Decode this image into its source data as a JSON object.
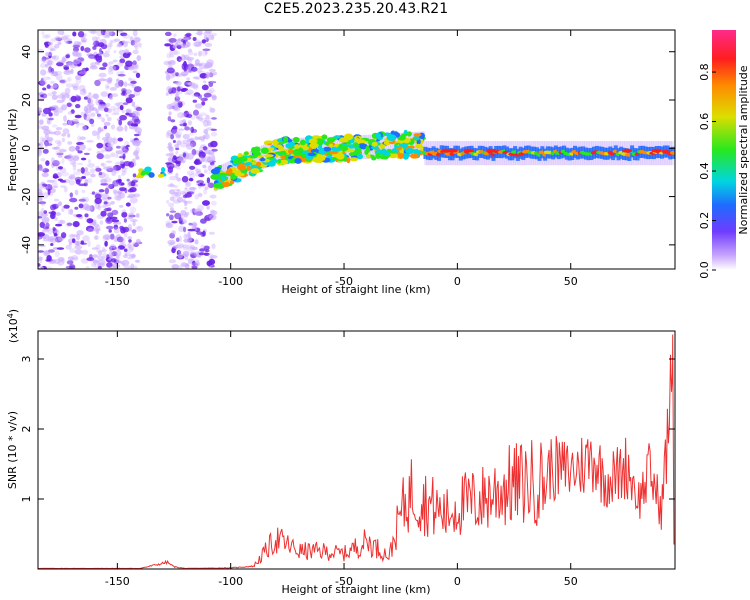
{
  "title": "C2E5.2023.235.20.43.R21",
  "colors": {
    "snr_line": "#ee3030",
    "waterfall_scatter": "#7a3cf0",
    "colorscale": [
      "#6f3cff",
      "#1e6bff",
      "#00d6e0",
      "#27e81f",
      "#dddd00",
      "#ff8a00",
      "#ff1e1e",
      "#ff2a8c"
    ]
  },
  "chart_data": [
    {
      "type": "heatmap",
      "name": "spectrogram",
      "xlabel": "Height of straight line (km)",
      "ylabel": "Frequency (Hz)",
      "xlim": [
        -185,
        96
      ],
      "ylim": [
        -50,
        49
      ],
      "xticks": [
        -150,
        -100,
        -50,
        0,
        50
      ],
      "yticks": [
        -40,
        -20,
        0,
        20,
        40
      ],
      "colorbar": {
        "label": "Normalized spectral amplitude",
        "range": [
          0,
          0.97
        ],
        "ticks": [
          0.0,
          0.2,
          0.4,
          0.6,
          0.8
        ]
      },
      "features": [
        {
          "x_range": [
            -185,
            -140
          ],
          "freq_range": [
            -50,
            49
          ],
          "amplitude": 0.1
        },
        {
          "x_range": [
            -128,
            -107
          ],
          "freq_range": [
            -50,
            49
          ],
          "amplitude": 0.1
        },
        {
          "x_range": [
            -140,
            -129
          ],
          "freq_center": -10,
          "amplitude": 0.45
        },
        {
          "x_range": [
            -107,
            -15
          ],
          "freq_trend": [
            [
              -107,
              -13
            ],
            [
              -80,
              -1
            ],
            [
              -50,
              0
            ],
            [
              -15,
              2
            ]
          ],
          "amplitude": 0.35
        },
        {
          "x_range": [
            -15,
            96
          ],
          "freq_center": -2,
          "amplitude": 0.5,
          "peak_amplitude": 0.9
        }
      ]
    },
    {
      "type": "line",
      "name": "snr",
      "xlabel": "Height of straight line (km)",
      "ylabel": "SNR (10 * v/v)",
      "y_multiplier_label": "(x10^4)",
      "xlim": [
        -185,
        96
      ],
      "ylim": [
        0,
        3.4
      ],
      "xticks": [
        -150,
        -100,
        -50,
        0,
        50
      ],
      "yticks": [
        1,
        2,
        3
      ],
      "series": [
        {
          "envelope_x": [
            -185,
            -140,
            -128,
            -125,
            -120,
            -100,
            -90,
            -80,
            -70,
            -60,
            -50,
            -40,
            -30,
            -25,
            -20,
            -15,
            -10,
            -5,
            0,
            10,
            20,
            30,
            40,
            50,
            55,
            60,
            65,
            70,
            75,
            80,
            85,
            90,
            95
          ],
          "envelope_y": [
            0.01,
            0.01,
            0.12,
            0.04,
            0.01,
            0.02,
            0.05,
            0.6,
            0.35,
            0.35,
            0.3,
            0.55,
            0.25,
            1.1,
            1.55,
            1.35,
            1.2,
            1.05,
            1.25,
            1.35,
            1.6,
            1.7,
            1.75,
            1.7,
            1.8,
            1.95,
            1.55,
            1.6,
            1.8,
            1.2,
            1.7,
            1.0,
            3.35
          ]
        }
      ]
    }
  ]
}
